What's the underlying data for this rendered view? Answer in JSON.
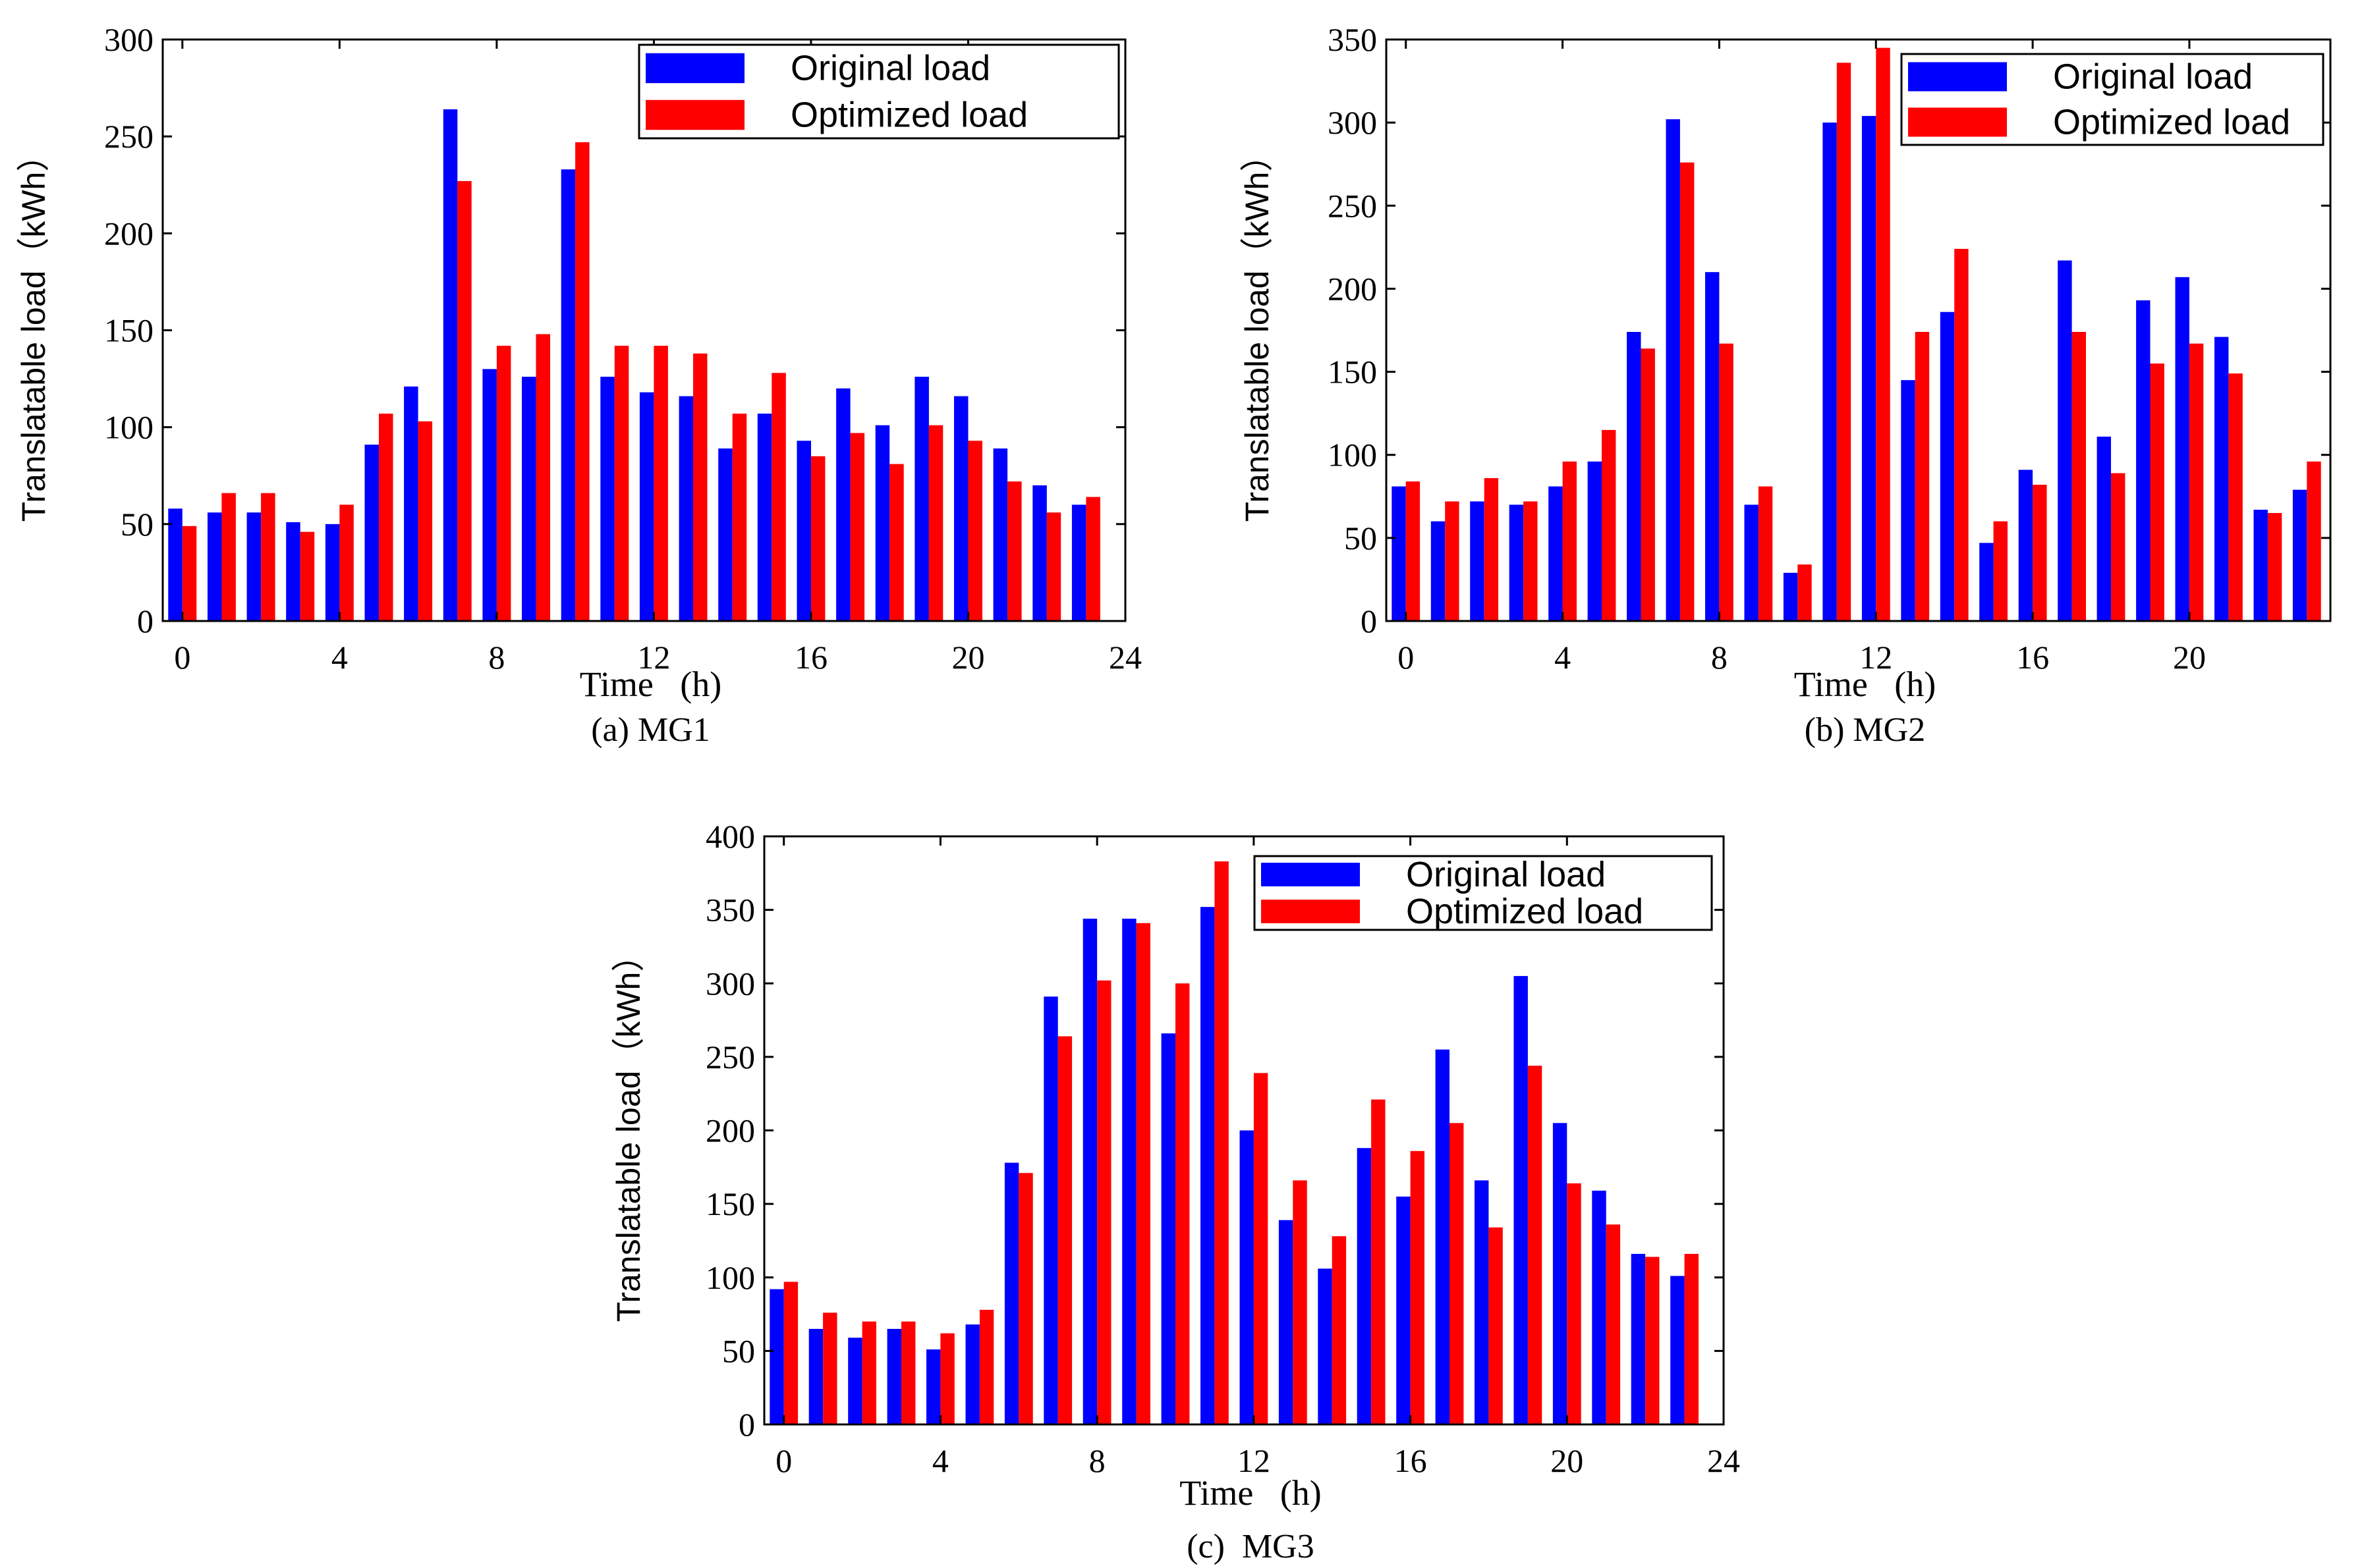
{
  "chart_data": [
    {
      "type": "bar",
      "caption": "(a) MG1",
      "xlabel": "Time   (h)",
      "ylabel": "Translatable load（kWh）",
      "ylim": [
        0,
        300
      ],
      "yticks": [
        "0",
        "50",
        "100",
        "150",
        "200",
        "250",
        "300"
      ],
      "xlim": [
        -0.5,
        24
      ],
      "xticks": [
        "0",
        "4",
        "8",
        "12",
        "16",
        "20",
        "24"
      ],
      "categories": [
        "0",
        "1",
        "2",
        "3",
        "4",
        "5",
        "6",
        "7",
        "8",
        "9",
        "10",
        "11",
        "12",
        "13",
        "14",
        "15",
        "16",
        "17",
        "18",
        "19",
        "20",
        "21",
        "22",
        "23"
      ],
      "series": [
        {
          "name": "Original load",
          "color": "#0000ff",
          "values": [
            58,
            56,
            56,
            51,
            50,
            91,
            121,
            264,
            130,
            126,
            233,
            126,
            118,
            116,
            89,
            107,
            93,
            120,
            101,
            126,
            116,
            89,
            70,
            60
          ]
        },
        {
          "name": "Optimized load",
          "color": "#ff0000",
          "values": [
            49,
            66,
            66,
            46,
            60,
            107,
            103,
            227,
            142,
            148,
            247,
            142,
            142,
            138,
            107,
            128,
            85,
            97,
            81,
            101,
            93,
            72,
            56,
            64
          ]
        }
      ],
      "legend": "top-right"
    },
    {
      "type": "bar",
      "caption": "(b) MG2",
      "xlabel": "Time   (h)",
      "ylabel": "Translatable load（kWh）",
      "ylim": [
        0,
        350
      ],
      "yticks": [
        "0",
        "50",
        "100",
        "150",
        "200",
        "250",
        "300",
        "350"
      ],
      "xlim": [
        -0.5,
        23.6
      ],
      "xticks": [
        "0",
        "4",
        "8",
        "12",
        "16",
        "20"
      ],
      "categories": [
        "0",
        "1",
        "2",
        "3",
        "4",
        "5",
        "6",
        "7",
        "8",
        "9",
        "10",
        "11",
        "12",
        "13",
        "14",
        "15",
        "16",
        "17",
        "18",
        "19",
        "20",
        "21",
        "22",
        "23"
      ],
      "series": [
        {
          "name": "Original load",
          "color": "#0000ff",
          "values": [
            81,
            60,
            72,
            70,
            81,
            96,
            174,
            302,
            210,
            70,
            29,
            300,
            304,
            145,
            186,
            47,
            91,
            217,
            111,
            193,
            207,
            171,
            67,
            79
          ]
        },
        {
          "name": "Optimized load",
          "color": "#ff0000",
          "values": [
            84,
            72,
            86,
            72,
            96,
            115,
            164,
            276,
            167,
            81,
            34,
            336,
            345,
            174,
            224,
            60,
            82,
            174,
            89,
            155,
            167,
            149,
            65,
            96
          ]
        }
      ],
      "legend": "top-right"
    },
    {
      "type": "bar",
      "caption": "(c)  MG3",
      "xlabel": "Time   (h)",
      "ylabel": "Translatable load（kWh）",
      "ylim": [
        0,
        400
      ],
      "yticks": [
        "0",
        "50",
        "100",
        "150",
        "200",
        "250",
        "300",
        "350",
        "400"
      ],
      "xlim": [
        -0.5,
        24
      ],
      "xticks": [
        "0",
        "4",
        "8",
        "12",
        "16",
        "20",
        "24"
      ],
      "categories": [
        "0",
        "1",
        "2",
        "3",
        "4",
        "5",
        "6",
        "7",
        "8",
        "9",
        "10",
        "11",
        "12",
        "13",
        "14",
        "15",
        "16",
        "17",
        "18",
        "19",
        "20",
        "21",
        "22",
        "23"
      ],
      "series": [
        {
          "name": "Original load",
          "color": "#0000ff",
          "values": [
            92,
            65,
            59,
            65,
            51,
            68,
            178,
            291,
            344,
            344,
            266,
            352,
            200,
            139,
            106,
            188,
            155,
            255,
            166,
            305,
            205,
            159,
            116,
            101
          ]
        },
        {
          "name": "Optimized load",
          "color": "#ff0000",
          "values": [
            97,
            76,
            70,
            70,
            62,
            78,
            171,
            264,
            302,
            341,
            300,
            383,
            239,
            166,
            128,
            221,
            186,
            205,
            134,
            244,
            164,
            136,
            114,
            116
          ]
        }
      ],
      "legend": "top-right"
    }
  ]
}
